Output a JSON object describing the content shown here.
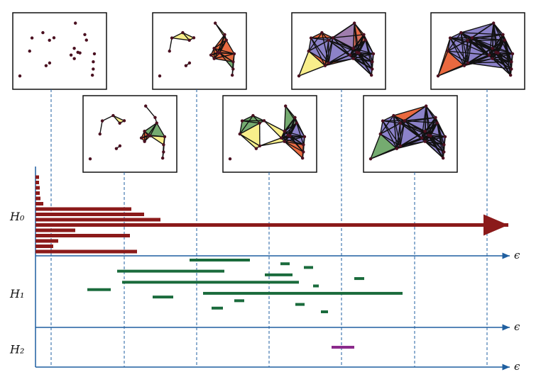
{
  "chart_data": {
    "type": "barcode",
    "xlabel": "ϵ",
    "xlim": [
      0,
      6.7
    ],
    "steps": [
      0.22,
      1.25,
      2.27,
      3.29,
      4.31,
      5.34,
      6.36
    ],
    "groups": [
      {
        "name": "H₀",
        "color": "#8b1a1a",
        "bars": [
          [
            0,
            0.05
          ],
          [
            0,
            0.05
          ],
          [
            0,
            0.06
          ],
          [
            0,
            0.06
          ],
          [
            0,
            0.07
          ],
          [
            0,
            0.11
          ],
          [
            0,
            1.35
          ],
          [
            0,
            1.53
          ],
          [
            0,
            1.76
          ],
          [
            0,
            null
          ],
          [
            0,
            0.56
          ],
          [
            0,
            1.33
          ],
          [
            0,
            0.32
          ],
          [
            0,
            0.25
          ],
          [
            0,
            1.43
          ]
        ]
      },
      {
        "name": "H₁",
        "color": "#1a6b3c",
        "bars": [
          [
            2.17,
            3.02
          ],
          [
            3.45,
            3.58
          ],
          [
            3.78,
            3.91
          ],
          [
            1.15,
            2.66
          ],
          [
            3.23,
            3.62
          ],
          [
            4.49,
            4.63
          ],
          [
            1.22,
            3.71
          ],
          [
            3.91,
            3.99
          ],
          [
            0.73,
            1.06
          ],
          [
            2.36,
            5.17
          ],
          [
            1.65,
            1.94
          ],
          [
            2.8,
            2.94
          ],
          [
            3.66,
            3.79
          ],
          [
            2.48,
            2.64
          ],
          [
            4.02,
            4.12
          ]
        ]
      },
      {
        "name": "H₂",
        "color": "#8b2a8b",
        "bars": [
          [
            4.17,
            4.49
          ]
        ]
      }
    ]
  }
}
